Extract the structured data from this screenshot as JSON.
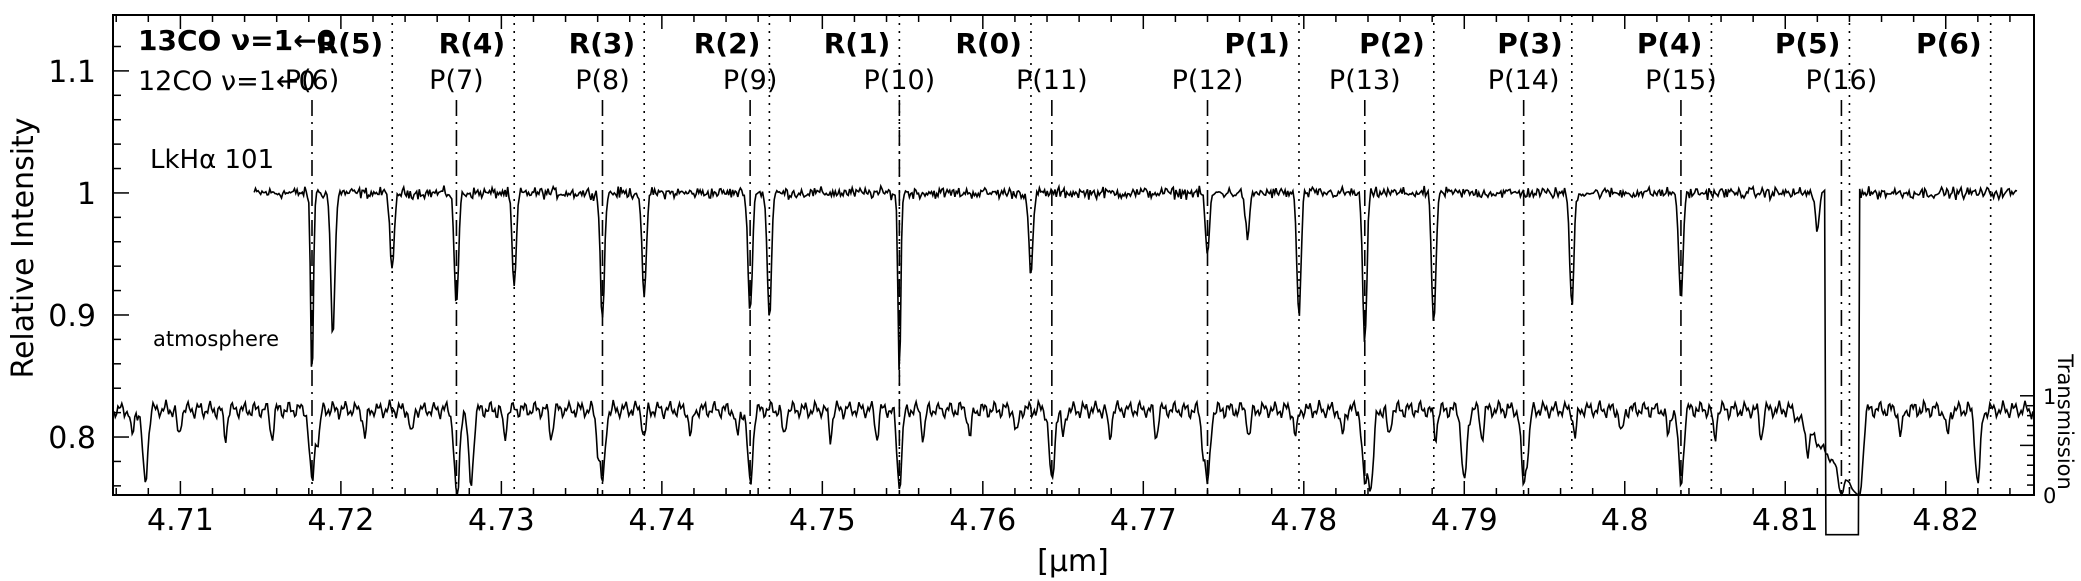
{
  "chart_data": {
    "type": "line",
    "xlabel": "[μm]",
    "ylabel": "Relative Intensity",
    "y2label": "Transmission",
    "xlim": [
      4.7058,
      4.8255
    ],
    "ylim": [
      0.7525,
      1.1458
    ],
    "x_ticks": [
      4.71,
      4.72,
      4.73,
      4.74,
      4.75,
      4.76,
      4.77,
      4.78,
      4.79,
      4.8,
      4.81,
      4.82
    ],
    "y_ticks": [
      0.8,
      0.9,
      1,
      1.1
    ],
    "y2_ticks": [
      {
        "label": "1",
        "value": 0.8338
      },
      {
        "label": "0",
        "value": 0.7525
      }
    ],
    "grid": false,
    "legend": {
      "co13": "13CO ν=1←0",
      "co12": "12CO ν=1←0"
    },
    "series_labels": {
      "target": "LkHα 101",
      "atmosphere": "atmosphere"
    },
    "co13_lines": [
      {
        "label": "R(5)",
        "x": 4.7232
      },
      {
        "label": "R(4)",
        "x": 4.7308
      },
      {
        "label": "R(3)",
        "x": 4.7389
      },
      {
        "label": "R(2)",
        "x": 4.7467
      },
      {
        "label": "R(1)",
        "x": 4.7548
      },
      {
        "label": "R(0)",
        "x": 4.763
      },
      {
        "label": "P(1)",
        "x": 4.7797
      },
      {
        "label": "P(2)",
        "x": 4.7881
      },
      {
        "label": "P(3)",
        "x": 4.7967
      },
      {
        "label": "P(4)",
        "x": 4.8054
      },
      {
        "label": "P(5)",
        "x": 4.814
      },
      {
        "label": "P(6)",
        "x": 4.8228
      }
    ],
    "co12_lines": [
      {
        "label": "P(6)",
        "x": 4.7182
      },
      {
        "label": "P(7)",
        "x": 4.7272
      },
      {
        "label": "P(8)",
        "x": 4.7363
      },
      {
        "label": "P(9)",
        "x": 4.7455
      },
      {
        "label": "P(10)",
        "x": 4.7548
      },
      {
        "label": "P(11)",
        "x": 4.7643
      },
      {
        "label": "P(12)",
        "x": 4.774
      },
      {
        "label": "P(13)",
        "x": 4.7838
      },
      {
        "label": "P(14)",
        "x": 4.7937
      },
      {
        "label": "P(15)",
        "x": 4.8035
      },
      {
        "label": "P(16)",
        "x": 4.8135
      }
    ],
    "target_spectrum": {
      "x": [
        4.7146,
        4.7175,
        4.7182,
        4.7188,
        4.7195,
        4.7232,
        4.725,
        4.7272,
        4.729,
        4.7308,
        4.733,
        4.7363,
        4.7375,
        4.7389,
        4.741,
        4.7455,
        4.7467,
        4.749,
        4.7548,
        4.759,
        4.763,
        4.765,
        4.77,
        4.774,
        4.7765,
        4.7797,
        4.7838,
        4.786,
        4.7881,
        4.792,
        4.7967,
        4.8,
        4.8035,
        4.8054,
        4.809,
        4.812,
        4.8132,
        4.8137,
        4.8147,
        4.816,
        4.82,
        4.8228,
        4.8245
      ],
      "y": [
        1.0,
        1.0,
        0.845,
        0.998,
        0.882,
        0.934,
        1.005,
        0.905,
        1.002,
        0.922,
        1.0,
        0.897,
        1.003,
        0.91,
        1.0,
        0.9,
        0.897,
        1.001,
        0.847,
        1.0,
        0.932,
        1.002,
        1.003,
        0.95,
        0.962,
        0.898,
        0.875,
        1.0,
        0.888,
        1.002,
        0.908,
        1.003,
        0.908,
        0.998,
        1.003,
        0.97,
        0.755,
        0.755,
        0.998,
        1.0,
        1.002,
        0.998,
        1.0
      ]
    },
    "atmosphere": {
      "transmission_min": 0.0,
      "transmission_max": 1.0,
      "deep_absorption_x": [
        4.7078,
        4.7182,
        4.7272,
        4.7281,
        4.7363,
        4.7455,
        4.7548,
        4.7643,
        4.774,
        4.7838,
        4.7842,
        4.79,
        4.7937,
        4.8035,
        4.8135,
        4.8147,
        4.822
      ]
    }
  }
}
